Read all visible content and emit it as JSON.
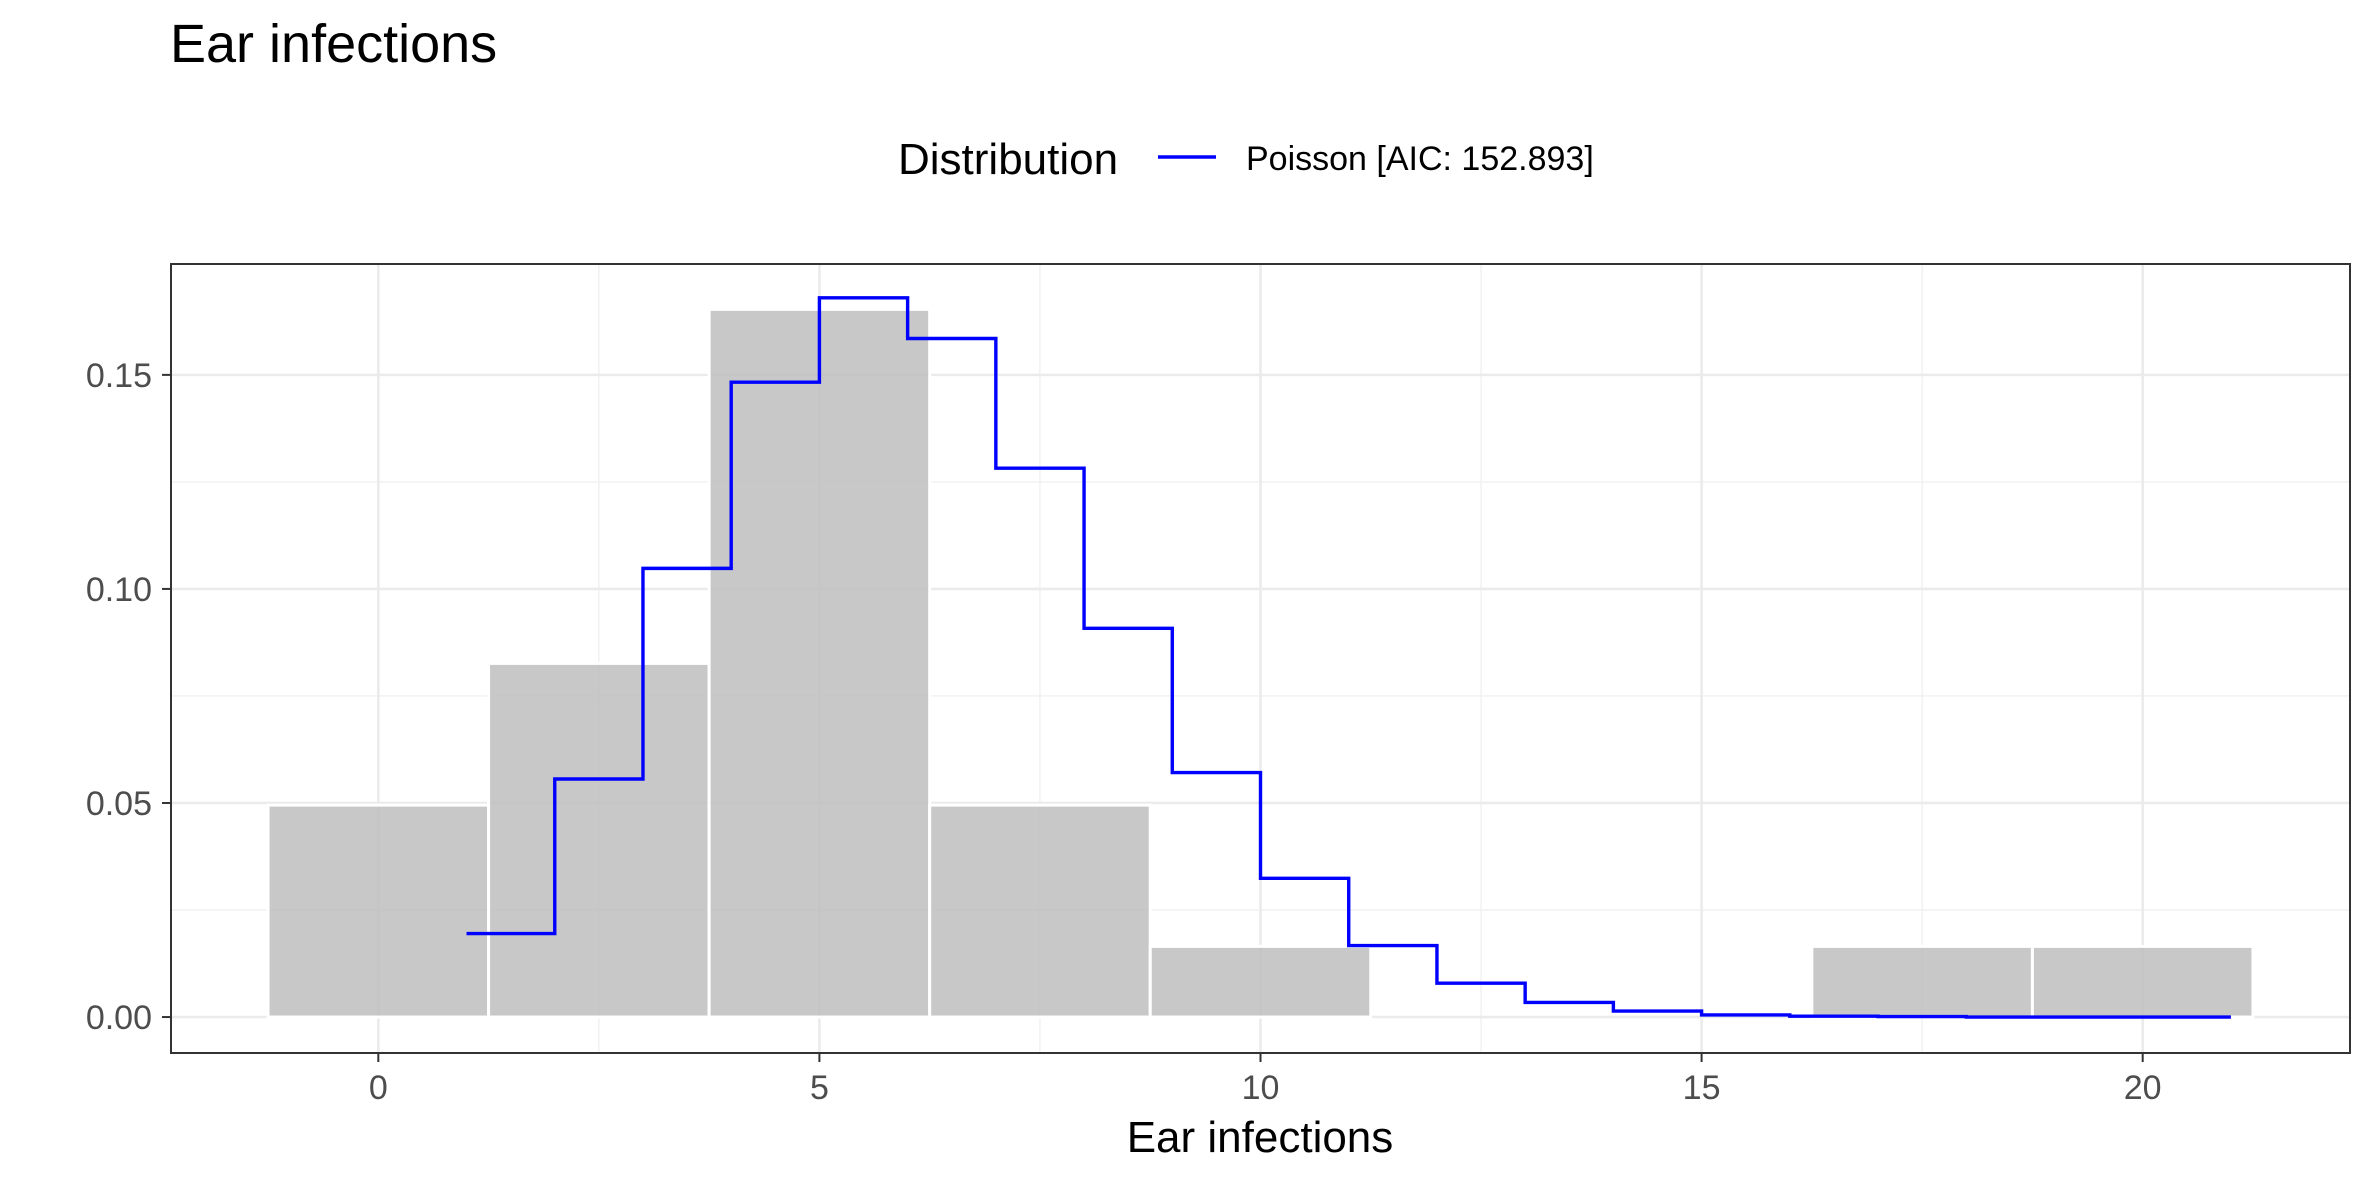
{
  "chart_data": {
    "type": "bar",
    "title": "Ear infections",
    "xlabel": "Ear infections",
    "ylabel": "",
    "xlim": [
      -2.35,
      22.35
    ],
    "ylim": [
      -0.0084,
      0.1759
    ],
    "grid": true,
    "legend_position": "top",
    "x_ticks": [
      "0",
      "5",
      "10",
      "15",
      "20"
    ],
    "y_ticks": [
      "0.00",
      "0.05",
      "0.10",
      "0.15"
    ],
    "histogram": {
      "bin_width": 2.5,
      "bins": [
        {
          "x_start": -1.25,
          "x_end": 1.25,
          "density": 0.0495
        },
        {
          "x_start": 1.25,
          "x_end": 3.75,
          "density": 0.0826
        },
        {
          "x_start": 3.75,
          "x_end": 6.25,
          "density": 0.1653
        },
        {
          "x_start": 6.25,
          "x_end": 8.75,
          "density": 0.0495
        },
        {
          "x_start": 8.75,
          "x_end": 11.25,
          "density": 0.0165
        },
        {
          "x_start": 11.25,
          "x_end": 13.75,
          "density": 0.0
        },
        {
          "x_start": 13.75,
          "x_end": 16.25,
          "density": 0.0
        },
        {
          "x_start": 16.25,
          "x_end": 18.75,
          "density": 0.0165
        },
        {
          "x_start": 18.75,
          "x_end": 21.25,
          "density": 0.0165
        }
      ],
      "color": "#bebebe"
    },
    "legend": {
      "title": "Distribution"
    },
    "series": [
      {
        "name": "Poisson [AIC: 152.893]",
        "type": "step",
        "color": "#0000ff",
        "x": [
          1,
          2,
          3,
          4,
          5,
          6,
          7,
          8,
          9,
          10,
          11,
          12,
          13,
          14,
          15,
          16,
          17,
          18,
          19,
          20,
          21
        ],
        "y": [
          0.0195,
          0.0556,
          0.1048,
          0.1483,
          0.168,
          0.1585,
          0.1282,
          0.0908,
          0.0571,
          0.0324,
          0.0167,
          0.0079,
          0.0034,
          0.0014,
          0.0005,
          0.0002,
          0.0001,
          0.0,
          0.0,
          0.0,
          0.0
        ]
      }
    ]
  }
}
